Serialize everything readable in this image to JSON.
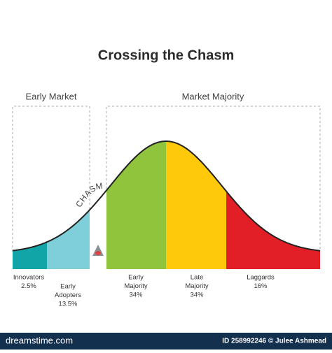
{
  "title": "Crossing the Chasm",
  "groups": [
    "Early Market",
    "Market Majority"
  ],
  "chasm": "CHASM",
  "segments": [
    {
      "label": [
        "Innovators"
      ],
      "share": "2.5%"
    },
    {
      "label": [
        "Early",
        "Adopters"
      ],
      "share": "13.5%"
    },
    {
      "label": [
        "Early",
        "Majority"
      ],
      "share": "34%"
    },
    {
      "label": [
        "Late",
        "Majority"
      ],
      "share": "34%"
    },
    {
      "label": [
        "Laggards"
      ],
      "share": "16%"
    }
  ],
  "footer": {
    "site": "dreamstime.com",
    "credit": "ID 258992246 © Julee Ashmead"
  }
}
